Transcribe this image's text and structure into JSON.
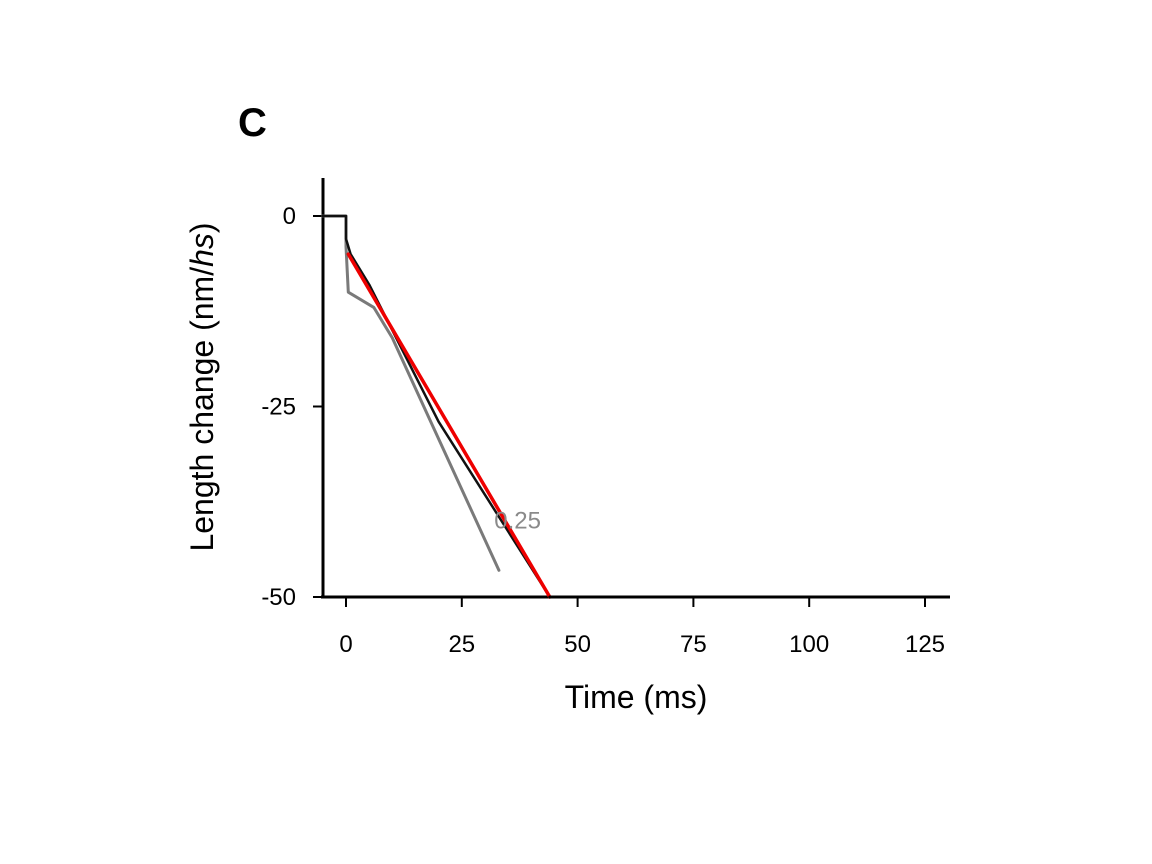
{
  "chart_data": {
    "type": "line",
    "panel_label": "C",
    "title": "",
    "xlabel": "Time (ms)",
    "ylabel_prefix": "Length change (nm/",
    "ylabel_italic": "hs",
    "ylabel_suffix": ")",
    "xlim": [
      -5,
      130
    ],
    "ylim": [
      -50,
      5
    ],
    "x_ticks": [
      0,
      25,
      50,
      75,
      100,
      125
    ],
    "x_tick_labels": [
      "0",
      "25",
      "50",
      "75",
      "100",
      "125"
    ],
    "y_ticks": [
      0,
      -25,
      -50
    ],
    "y_tick_labels": [
      "0",
      "-25",
      "-50"
    ],
    "grid": false,
    "annotations": [
      {
        "text": "0.25",
        "x": 32,
        "y": -41
      }
    ],
    "series": [
      {
        "name": "trace (gray)",
        "color": "#7a7a7a",
        "x": [
          -5,
          0,
          0,
          0.5,
          6,
          10,
          33
        ],
        "y": [
          0,
          0,
          -4,
          -10,
          -12,
          -16,
          -46.5
        ]
      },
      {
        "name": "trace (black)",
        "color": "#111111",
        "x": [
          -5,
          0,
          0,
          1,
          5,
          20,
          44
        ],
        "y": [
          0,
          0,
          -3,
          -5,
          -9,
          -27,
          -50
        ]
      },
      {
        "name": "fit (red)",
        "color": "#ee0000",
        "x": [
          0.5,
          44
        ],
        "y": [
          -5,
          -50
        ]
      },
      {
        "name": "baseline",
        "color": "#000000",
        "x": [
          44,
          130
        ],
        "y": [
          -50,
          -50
        ]
      }
    ]
  }
}
